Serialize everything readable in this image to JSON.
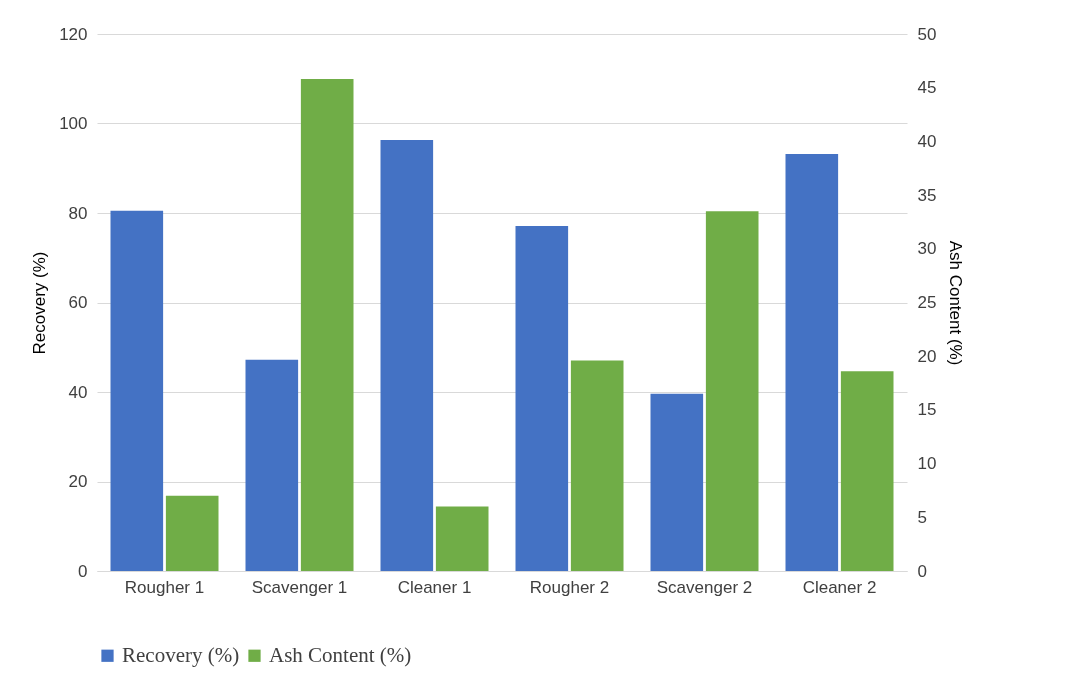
{
  "chart_data": {
    "type": "bar",
    "categories": [
      "Rougher 1",
      "Scavenger 1",
      "Cleaner 1",
      "Rougher 2",
      "Scavenger 2",
      "Cleaner 2"
    ],
    "ylabel": "Recovery (%)",
    "y2label": "Ash Content (%)",
    "ylim": [
      0,
      120
    ],
    "yticks": [
      0,
      20,
      40,
      60,
      80,
      100,
      120
    ],
    "y2lim": [
      0,
      50
    ],
    "y2ticks": [
      0,
      5,
      10,
      15,
      20,
      25,
      30,
      35,
      40,
      45,
      50
    ],
    "grid": "y",
    "legend": "bottom",
    "series": [
      {
        "name": "Recovery (%)",
        "color": "#4472c4",
        "values": [
          80.5,
          47.2,
          96.3,
          77.1,
          39.6,
          93.2
        ]
      },
      {
        "name": "Ash Content (%)",
        "color": "#70ad47",
        "axis": "y2",
        "values": [
          7.0,
          45.8,
          6.0,
          19.6,
          33.5,
          18.6
        ]
      }
    ]
  }
}
